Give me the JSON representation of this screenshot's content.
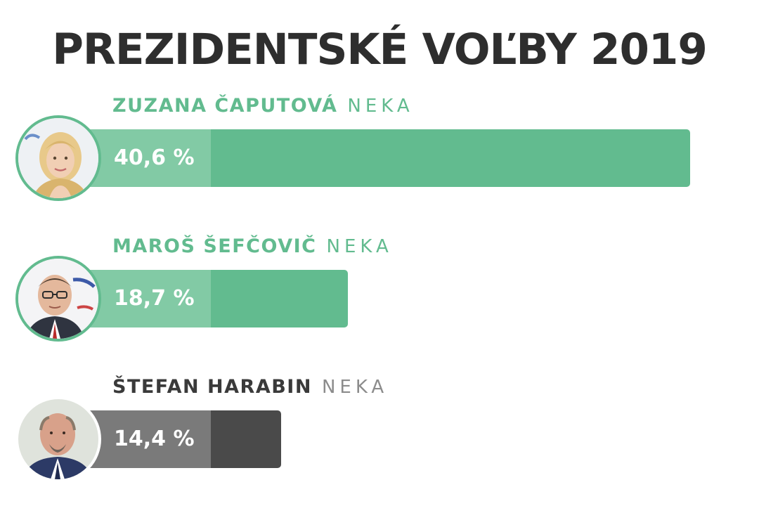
{
  "title": "PREZIDENTSKÉ VOĽBY 2019",
  "chart_data": {
    "type": "bar",
    "orientation": "horizontal",
    "unit": "%",
    "max_value": 40.6,
    "categories": [
      "ZUZANA ČAPUTOVÁ",
      "MAROŠ ŠEFČOVIČ",
      "ŠTEFAN HARABIN"
    ],
    "values": [
      40.6,
      18.7,
      14.4
    ],
    "value_labels": [
      "40,6 %",
      "18,7 %",
      "14,4 %"
    ],
    "parties": [
      "NEKA",
      "NEKA",
      "NEKA"
    ],
    "colors": [
      "#62bb8f",
      "#62bb8f",
      "#4a4a4a"
    ]
  },
  "candidates": [
    {
      "name": "ZUZANA ČAPUTOVÁ",
      "party": "NEKA",
      "value_label": "40,6 %",
      "value": 40.6,
      "style": "green",
      "portrait_icon": "woman-portrait-icon"
    },
    {
      "name": "MAROŠ ŠEFČOVIČ",
      "party": "NEKA",
      "value_label": "18,7 %",
      "value": 18.7,
      "style": "green",
      "portrait_icon": "man-glasses-portrait-icon"
    },
    {
      "name": "ŠTEFAN HARABIN",
      "party": "NEKA",
      "value_label": "14,4 %",
      "value": 14.4,
      "style": "grey",
      "portrait_icon": "man-bald-portrait-icon"
    }
  ]
}
